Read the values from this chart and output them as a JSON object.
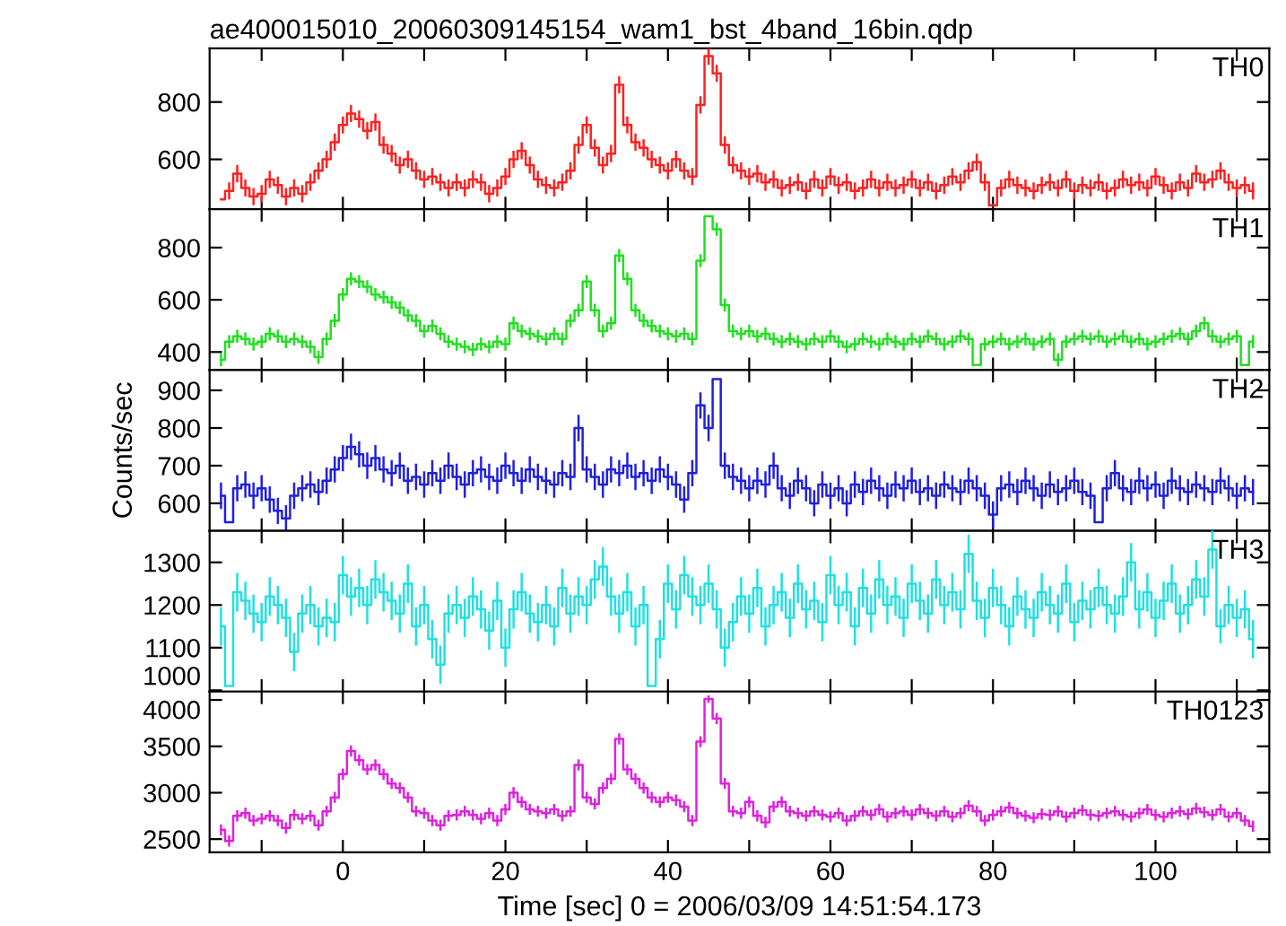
{
  "chart_data": [
    {
      "type": "step",
      "title": "ae400015010_20060309145154_wam1_bst_4band_16bin.qdp",
      "xlim": [
        -16.4,
        114
      ],
      "ylim": [
        426,
        987
      ],
      "yticks": [
        600,
        800
      ],
      "xticks": [
        {
          "value": -10,
          "label": null
        },
        {
          "value": 0,
          "label": null
        },
        {
          "value": 10,
          "label": null
        },
        {
          "value": 20,
          "label": null
        },
        {
          "value": 30,
          "label": null
        },
        {
          "value": 40,
          "label": null
        },
        {
          "value": 50,
          "label": null
        },
        {
          "value": 60,
          "label": null
        },
        {
          "value": 70,
          "label": null
        },
        {
          "value": 80,
          "label": null
        },
        {
          "value": 90,
          "label": null
        },
        {
          "value": 100,
          "label": null
        },
        {
          "value": 110,
          "label": null
        }
      ],
      "tick_labels": "y",
      "legend": false,
      "grid": false,
      "x": [
        -15,
        -14,
        -13,
        -12,
        -11,
        -10,
        -9,
        -8,
        -7,
        -6,
        -5,
        -4,
        -3,
        -2,
        -1,
        0,
        1,
        2,
        3,
        4,
        5,
        6,
        7,
        8,
        9,
        10,
        11,
        12,
        13,
        14,
        15,
        16,
        17,
        18,
        19,
        20,
        21,
        22,
        23,
        24,
        25,
        26,
        27,
        28,
        29,
        30,
        31,
        32,
        33,
        34,
        35,
        36,
        37,
        38,
        39,
        40,
        41,
        42,
        43,
        44,
        45,
        46,
        47,
        48,
        49,
        50,
        51,
        52,
        53,
        54,
        55,
        56,
        57,
        58,
        59,
        60,
        61,
        62,
        63,
        64,
        65,
        66,
        67,
        68,
        69,
        70,
        71,
        72,
        73,
        74,
        75,
        76,
        77,
        78,
        79,
        80,
        81,
        82,
        83,
        84,
        85,
        86,
        87,
        88,
        89,
        90,
        91,
        92,
        93,
        94,
        95,
        96,
        97,
        98,
        99,
        100,
        101,
        102,
        103,
        104,
        105,
        106,
        107,
        108,
        109,
        110,
        111,
        112
      ],
      "series": [
        {
          "name": "TH0",
          "color": "#ff2020",
          "values": [
            460,
            490,
            550,
            500,
            470,
            480,
            530,
            510,
            470,
            500,
            480,
            520,
            560,
            600,
            660,
            720,
            760,
            740,
            700,
            730,
            650,
            620,
            580,
            600,
            560,
            530,
            540,
            520,
            500,
            520,
            500,
            530,
            520,
            480,
            500,
            540,
            600,
            630,
            580,
            530,
            510,
            500,
            520,
            560,
            650,
            720,
            640,
            580,
            620,
            860,
            720,
            660,
            640,
            600,
            580,
            560,
            600,
            560,
            540,
            790,
            960,
            900,
            650,
            580,
            560,
            540,
            550,
            520,
            530,
            500,
            510,
            520,
            490,
            530,
            500,
            540,
            510,
            520,
            490,
            500,
            530,
            500,
            520,
            500,
            510,
            530,
            500,
            520,
            490,
            510,
            540,
            520,
            560,
            590,
            520,
            440,
            500,
            530,
            510,
            500,
            490,
            510,
            520,
            500,
            530,
            490,
            510,
            500,
            520,
            490,
            500,
            530,
            510,
            520,
            500,
            540,
            510,
            490,
            520,
            500,
            550,
            520,
            530,
            560,
            520,
            500,
            510,
            490
          ],
          "errors": [
            null,
            30,
            30,
            30,
            30,
            30,
            30,
            30,
            30,
            30,
            30,
            30,
            30,
            30,
            30,
            30,
            30,
            30,
            30,
            30,
            30,
            30,
            30,
            30,
            30,
            30,
            30,
            30,
            30,
            30,
            30,
            30,
            30,
            30,
            30,
            30,
            30,
            30,
            30,
            30,
            30,
            30,
            30,
            30,
            30,
            30,
            30,
            30,
            30,
            30,
            30,
            30,
            30,
            30,
            30,
            30,
            30,
            30,
            30,
            30,
            30,
            30,
            30,
            30,
            30,
            30,
            30,
            30,
            30,
            30,
            30,
            30,
            30,
            30,
            30,
            30,
            30,
            30,
            30,
            30,
            30,
            30,
            30,
            30,
            30,
            30,
            30,
            30,
            30,
            30,
            30,
            30,
            30,
            30,
            30,
            null,
            30,
            30,
            30,
            30,
            30,
            30,
            30,
            30,
            30,
            30,
            30,
            30,
            30,
            30,
            30,
            30,
            30,
            30,
            30,
            30,
            30,
            30,
            30,
            30,
            30,
            30,
            30,
            30,
            30,
            30,
            30,
            30
          ]
        }
      ]
    },
    {
      "type": "step",
      "xlim": [
        -16.4,
        114
      ],
      "ylim": [
        331,
        947
      ],
      "yticks": [
        400,
        600,
        800
      ],
      "xticks": [
        {
          "value": -10,
          "label": null
        },
        {
          "value": 0,
          "label": null
        },
        {
          "value": 10,
          "label": null
        },
        {
          "value": 20,
          "label": null
        },
        {
          "value": 30,
          "label": null
        },
        {
          "value": 40,
          "label": null
        },
        {
          "value": 50,
          "label": null
        },
        {
          "value": 60,
          "label": null
        },
        {
          "value": 70,
          "label": null
        },
        {
          "value": 80,
          "label": null
        },
        {
          "value": 90,
          "label": null
        },
        {
          "value": 100,
          "label": null
        },
        {
          "value": 110,
          "label": null
        }
      ],
      "tick_labels": "y",
      "legend": false,
      "grid": false,
      "x": [
        -15,
        -14,
        -13,
        -12,
        -11,
        -10,
        -9,
        -8,
        -7,
        -6,
        -5,
        -4,
        -3,
        -2,
        -1,
        0,
        1,
        2,
        3,
        4,
        5,
        6,
        7,
        8,
        9,
        10,
        11,
        12,
        13,
        14,
        15,
        16,
        17,
        18,
        19,
        20,
        21,
        22,
        23,
        24,
        25,
        26,
        27,
        28,
        29,
        30,
        31,
        32,
        33,
        34,
        35,
        36,
        37,
        38,
        39,
        40,
        41,
        42,
        43,
        44,
        45,
        46,
        47,
        48,
        49,
        50,
        51,
        52,
        53,
        54,
        55,
        56,
        57,
        58,
        59,
        60,
        61,
        62,
        63,
        64,
        65,
        66,
        67,
        68,
        69,
        70,
        71,
        72,
        73,
        74,
        75,
        76,
        77,
        78,
        79,
        80,
        81,
        82,
        83,
        84,
        85,
        86,
        87,
        88,
        89,
        90,
        91,
        92,
        93,
        94,
        95,
        96,
        97,
        98,
        99,
        100,
        101,
        102,
        103,
        104,
        105,
        106,
        107,
        108,
        109,
        110,
        111,
        112
      ],
      "series": [
        {
          "name": "TH1",
          "color": "#20e020",
          "values": [
            370,
            440,
            460,
            450,
            430,
            440,
            470,
            460,
            440,
            450,
            440,
            420,
            380,
            450,
            520,
            620,
            680,
            670,
            650,
            620,
            610,
            590,
            570,
            540,
            520,
            480,
            500,
            470,
            440,
            430,
            420,
            410,
            430,
            420,
            440,
            430,
            510,
            480,
            470,
            460,
            450,
            470,
            450,
            520,
            560,
            670,
            560,
            480,
            510,
            770,
            680,
            560,
            520,
            500,
            480,
            470,
            460,
            470,
            450,
            750,
            920,
            870,
            580,
            480,
            470,
            480,
            460,
            470,
            450,
            440,
            450,
            440,
            430,
            450,
            440,
            460,
            440,
            420,
            430,
            450,
            440,
            430,
            450,
            440,
            430,
            450,
            440,
            460,
            450,
            430,
            440,
            460,
            450,
            350,
            430,
            440,
            450,
            430,
            440,
            450,
            430,
            440,
            450,
            370,
            440,
            450,
            460,
            450,
            460,
            440,
            450,
            460,
            440,
            450,
            430,
            440,
            450,
            460,
            470,
            450,
            480,
            510,
            460,
            440,
            450,
            460,
            350,
            440
          ],
          "errors": [
            25,
            25,
            25,
            25,
            25,
            25,
            25,
            25,
            25,
            25,
            25,
            25,
            25,
            25,
            25,
            25,
            25,
            25,
            25,
            25,
            25,
            25,
            25,
            25,
            25,
            25,
            25,
            25,
            25,
            25,
            25,
            25,
            25,
            25,
            25,
            25,
            25,
            25,
            25,
            25,
            25,
            25,
            25,
            25,
            25,
            25,
            25,
            25,
            25,
            25,
            25,
            25,
            25,
            25,
            25,
            25,
            25,
            25,
            25,
            25,
            null,
            25,
            25,
            25,
            25,
            25,
            25,
            25,
            25,
            25,
            25,
            25,
            25,
            25,
            25,
            25,
            25,
            25,
            25,
            25,
            25,
            25,
            25,
            25,
            25,
            25,
            25,
            25,
            25,
            25,
            25,
            25,
            25,
            null,
            25,
            25,
            25,
            25,
            25,
            25,
            25,
            25,
            25,
            25,
            25,
            25,
            25,
            25,
            25,
            25,
            25,
            25,
            25,
            25,
            25,
            25,
            25,
            25,
            25,
            25,
            25,
            25,
            25,
            25,
            25,
            25,
            null,
            25
          ]
        }
      ]
    },
    {
      "type": "step",
      "ylabel": "Counts/sec",
      "xlim": [
        -16.4,
        114
      ],
      "ylim": [
        527,
        954
      ],
      "yticks": [
        600,
        700,
        800,
        900
      ],
      "xticks": [
        {
          "value": -10,
          "label": null
        },
        {
          "value": 0,
          "label": null
        },
        {
          "value": 10,
          "label": null
        },
        {
          "value": 20,
          "label": null
        },
        {
          "value": 30,
          "label": null
        },
        {
          "value": 40,
          "label": null
        },
        {
          "value": 50,
          "label": null
        },
        {
          "value": 60,
          "label": null
        },
        {
          "value": 70,
          "label": null
        },
        {
          "value": 80,
          "label": null
        },
        {
          "value": 90,
          "label": null
        },
        {
          "value": 100,
          "label": null
        },
        {
          "value": 110,
          "label": null
        }
      ],
      "tick_labels": "y",
      "legend": false,
      "grid": false,
      "x": [
        -15,
        -14,
        -13,
        -12,
        -11,
        -10,
        -9,
        -8,
        -7,
        -6,
        -5,
        -4,
        -3,
        -2,
        -1,
        0,
        1,
        2,
        3,
        4,
        5,
        6,
        7,
        8,
        9,
        10,
        11,
        12,
        13,
        14,
        15,
        16,
        17,
        18,
        19,
        20,
        21,
        22,
        23,
        24,
        25,
        26,
        27,
        28,
        29,
        30,
        31,
        32,
        33,
        34,
        35,
        36,
        37,
        38,
        39,
        40,
        41,
        42,
        43,
        44,
        45,
        46,
        47,
        48,
        49,
        50,
        51,
        52,
        53,
        54,
        55,
        56,
        57,
        58,
        59,
        60,
        61,
        62,
        63,
        64,
        65,
        66,
        67,
        68,
        69,
        70,
        71,
        72,
        73,
        74,
        75,
        76,
        77,
        78,
        79,
        80,
        81,
        82,
        83,
        84,
        85,
        86,
        87,
        88,
        89,
        90,
        91,
        92,
        93,
        94,
        95,
        96,
        97,
        98,
        99,
        100,
        101,
        102,
        103,
        104,
        105,
        106,
        107,
        108,
        109,
        110,
        111,
        112
      ],
      "series": [
        {
          "name": "TH2",
          "color": "#2020e0",
          "values": [
            620,
            550,
            640,
            650,
            620,
            640,
            610,
            580,
            560,
            620,
            640,
            650,
            630,
            660,
            690,
            720,
            750,
            730,
            700,
            720,
            690,
            680,
            700,
            660,
            670,
            650,
            680,
            660,
            700,
            670,
            650,
            680,
            690,
            670,
            660,
            700,
            680,
            660,
            690,
            670,
            660,
            650,
            680,
            670,
            800,
            690,
            670,
            650,
            690,
            680,
            700,
            670,
            680,
            660,
            690,
            670,
            650,
            610,
            680,
            860,
            800,
            930,
            700,
            670,
            660,
            640,
            660,
            650,
            700,
            640,
            620,
            660,
            640,
            600,
            650,
            620,
            640,
            600,
            650,
            630,
            660,
            640,
            620,
            650,
            640,
            660,
            630,
            640,
            620,
            650,
            640,
            630,
            660,
            640,
            620,
            570,
            640,
            650,
            630,
            660,
            640,
            620,
            650,
            630,
            640,
            660,
            630,
            620,
            550,
            640,
            680,
            640,
            630,
            660,
            640,
            650,
            620,
            660,
            640,
            630,
            650,
            640,
            630,
            660,
            640,
            620,
            640,
            630
          ],
          "errors": [
            35,
            null,
            35,
            35,
            35,
            35,
            35,
            35,
            35,
            35,
            35,
            35,
            35,
            35,
            35,
            35,
            35,
            35,
            35,
            35,
            35,
            35,
            35,
            35,
            35,
            35,
            35,
            35,
            35,
            35,
            35,
            35,
            35,
            35,
            35,
            35,
            35,
            35,
            35,
            35,
            35,
            35,
            35,
            35,
            35,
            35,
            35,
            35,
            35,
            35,
            35,
            35,
            35,
            35,
            35,
            35,
            35,
            35,
            35,
            35,
            35,
            null,
            35,
            35,
            35,
            35,
            35,
            35,
            35,
            35,
            35,
            35,
            35,
            35,
            35,
            35,
            35,
            35,
            35,
            35,
            35,
            35,
            35,
            35,
            35,
            35,
            35,
            35,
            35,
            35,
            35,
            35,
            35,
            35,
            35,
            35,
            35,
            35,
            35,
            35,
            35,
            35,
            35,
            35,
            35,
            35,
            35,
            35,
            null,
            35,
            35,
            35,
            35,
            35,
            35,
            35,
            35,
            35,
            35,
            35,
            35,
            35,
            35,
            35,
            35,
            35,
            35,
            35
          ]
        }
      ]
    },
    {
      "type": "step",
      "xlim": [
        -16.4,
        114
      ],
      "ylim": [
        997,
        1374
      ],
      "yticks": [
        1000,
        1100,
        1200,
        1300
      ],
      "xticks": [
        {
          "value": -10,
          "label": null
        },
        {
          "value": 0,
          "label": null
        },
        {
          "value": 10,
          "label": null
        },
        {
          "value": 20,
          "label": null
        },
        {
          "value": 30,
          "label": null
        },
        {
          "value": 40,
          "label": null
        },
        {
          "value": 50,
          "label": null
        },
        {
          "value": 60,
          "label": null
        },
        {
          "value": 70,
          "label": null
        },
        {
          "value": 80,
          "label": null
        },
        {
          "value": 90,
          "label": null
        },
        {
          "value": 100,
          "label": null
        },
        {
          "value": 110,
          "label": null
        }
      ],
      "tick_labels": "y",
      "legend": false,
      "grid": false,
      "x": [
        -15,
        -14,
        -13,
        -12,
        -11,
        -10,
        -9,
        -8,
        -7,
        -6,
        -5,
        -4,
        -3,
        -2,
        -1,
        0,
        1,
        2,
        3,
        4,
        5,
        6,
        7,
        8,
        9,
        10,
        11,
        12,
        13,
        14,
        15,
        16,
        17,
        18,
        19,
        20,
        21,
        22,
        23,
        24,
        25,
        26,
        27,
        28,
        29,
        30,
        31,
        32,
        33,
        34,
        35,
        36,
        37,
        38,
        39,
        40,
        41,
        42,
        43,
        44,
        45,
        46,
        47,
        48,
        49,
        50,
        51,
        52,
        53,
        54,
        55,
        56,
        57,
        58,
        59,
        60,
        61,
        62,
        63,
        64,
        65,
        66,
        67,
        68,
        69,
        70,
        71,
        72,
        73,
        74,
        75,
        76,
        77,
        78,
        79,
        80,
        81,
        82,
        83,
        84,
        85,
        86,
        87,
        88,
        89,
        90,
        91,
        92,
        93,
        94,
        95,
        96,
        97,
        98,
        99,
        100,
        101,
        102,
        103,
        104,
        105,
        106,
        107,
        108,
        109,
        110,
        111,
        112
      ],
      "series": [
        {
          "name": "TH3",
          "color": "#20e0e0",
          "values": [
            1150,
            1010,
            1230,
            1210,
            1180,
            1160,
            1220,
            1200,
            1170,
            1090,
            1180,
            1200,
            1150,
            1170,
            1160,
            1270,
            1220,
            1240,
            1200,
            1260,
            1230,
            1210,
            1180,
            1250,
            1150,
            1200,
            1120,
            1060,
            1180,
            1200,
            1170,
            1220,
            1190,
            1140,
            1210,
            1100,
            1190,
            1230,
            1180,
            1160,
            1200,
            1150,
            1240,
            1180,
            1220,
            1200,
            1260,
            1290,
            1220,
            1180,
            1230,
            1150,
            1200,
            1010,
            1120,
            1250,
            1190,
            1270,
            1220,
            1200,
            1250,
            1190,
            1100,
            1160,
            1220,
            1180,
            1240,
            1150,
            1200,
            1230,
            1170,
            1250,
            1190,
            1210,
            1160,
            1270,
            1200,
            1230,
            1150,
            1240,
            1180,
            1260,
            1200,
            1220,
            1170,
            1250,
            1210,
            1180,
            1260,
            1200,
            1230,
            1190,
            1320,
            1210,
            1170,
            1240,
            1200,
            1150,
            1220,
            1190,
            1170,
            1230,
            1200,
            1180,
            1250,
            1160,
            1210,
            1190,
            1240,
            1200,
            1180,
            1220,
            1300,
            1190,
            1230,
            1170,
            1210,
            1250,
            1180,
            1200,
            1260,
            1220,
            1330,
            1150,
            1200,
            1170,
            1190,
            1120
          ],
          "errors": [
            45,
            null,
            45,
            45,
            45,
            45,
            45,
            45,
            45,
            45,
            45,
            45,
            45,
            45,
            45,
            45,
            45,
            45,
            45,
            45,
            45,
            45,
            45,
            45,
            45,
            45,
            45,
            45,
            45,
            45,
            45,
            45,
            45,
            45,
            45,
            45,
            45,
            45,
            45,
            45,
            45,
            45,
            45,
            45,
            45,
            45,
            45,
            45,
            45,
            45,
            45,
            45,
            45,
            null,
            45,
            45,
            45,
            45,
            45,
            45,
            45,
            45,
            45,
            45,
            45,
            45,
            45,
            45,
            45,
            45,
            45,
            45,
            45,
            45,
            45,
            45,
            45,
            45,
            45,
            45,
            45,
            45,
            45,
            45,
            45,
            45,
            45,
            45,
            45,
            45,
            45,
            45,
            45,
            45,
            45,
            45,
            45,
            45,
            45,
            45,
            45,
            45,
            45,
            45,
            45,
            45,
            45,
            45,
            45,
            45,
            45,
            45,
            45,
            45,
            45,
            45,
            45,
            45,
            45,
            45,
            45,
            45,
            45,
            40,
            45,
            45,
            45,
            45
          ]
        }
      ]
    },
    {
      "type": "step",
      "xlabel": "Time [sec] 0 = 2006/03/09 14:51:54.173",
      "xlim": [
        -16.4,
        114
      ],
      "ylim": [
        2357,
        4090
      ],
      "yticks": [
        2500,
        3000,
        3500,
        4000
      ],
      "xticks": [
        {
          "value": -10,
          "label": null
        },
        {
          "value": 0,
          "label": "0"
        },
        {
          "value": 10,
          "label": null
        },
        {
          "value": 20,
          "label": "20"
        },
        {
          "value": 30,
          "label": null
        },
        {
          "value": 40,
          "label": "40"
        },
        {
          "value": 50,
          "label": null
        },
        {
          "value": 60,
          "label": "60"
        },
        {
          "value": 70,
          "label": null
        },
        {
          "value": 80,
          "label": "80"
        },
        {
          "value": 90,
          "label": null
        },
        {
          "value": 100,
          "label": "100"
        },
        {
          "value": 110,
          "label": null
        }
      ],
      "legend": false,
      "grid": false,
      "x": [
        -15,
        -14,
        -13,
        -12,
        -11,
        -10,
        -9,
        -8,
        -7,
        -6,
        -5,
        -4,
        -3,
        -2,
        -1,
        0,
        1,
        2,
        3,
        4,
        5,
        6,
        7,
        8,
        9,
        10,
        11,
        12,
        13,
        14,
        15,
        16,
        17,
        18,
        19,
        20,
        21,
        22,
        23,
        24,
        25,
        26,
        27,
        28,
        29,
        30,
        31,
        32,
        33,
        34,
        35,
        36,
        37,
        38,
        39,
        40,
        41,
        42,
        43,
        44,
        45,
        46,
        47,
        48,
        49,
        50,
        51,
        52,
        53,
        54,
        55,
        56,
        57,
        58,
        59,
        60,
        61,
        62,
        63,
        64,
        65,
        66,
        67,
        68,
        69,
        70,
        71,
        72,
        73,
        74,
        75,
        76,
        77,
        78,
        79,
        80,
        81,
        82,
        83,
        84,
        85,
        86,
        87,
        88,
        89,
        90,
        91,
        92,
        93,
        94,
        95,
        96,
        97,
        98,
        99,
        100,
        101,
        102,
        103,
        104,
        105,
        106,
        107,
        108,
        109,
        110,
        111,
        112
      ],
      "series": [
        {
          "name": "TH0123",
          "color": "#e020e0",
          "values": [
            2600,
            2480,
            2750,
            2780,
            2700,
            2720,
            2750,
            2700,
            2620,
            2760,
            2720,
            2750,
            2650,
            2800,
            2950,
            3200,
            3450,
            3350,
            3250,
            3300,
            3200,
            3100,
            3050,
            2950,
            2800,
            2780,
            2700,
            2650,
            2750,
            2760,
            2800,
            2760,
            2720,
            2780,
            2700,
            2820,
            3000,
            2900,
            2820,
            2800,
            2780,
            2820,
            2750,
            2800,
            3300,
            2950,
            2880,
            3050,
            3150,
            3580,
            3250,
            3150,
            3050,
            2950,
            2900,
            2950,
            2920,
            2850,
            2700,
            3550,
            4010,
            3800,
            3100,
            2800,
            2780,
            2900,
            2750,
            2680,
            2850,
            2900,
            2800,
            2780,
            2750,
            2800,
            2760,
            2740,
            2780,
            2700,
            2750,
            2800,
            2760,
            2820,
            2740,
            2780,
            2800,
            2760,
            2820,
            2780,
            2750,
            2800,
            2740,
            2780,
            2860,
            2800,
            2700,
            2760,
            2800,
            2840,
            2780,
            2750,
            2730,
            2770,
            2760,
            2800,
            2740,
            2780,
            2810,
            2760,
            2750,
            2780,
            2800,
            2760,
            2740,
            2780,
            2820,
            2760,
            2740,
            2780,
            2800,
            2770,
            2830,
            2790,
            2760,
            2820,
            2740,
            2780,
            2700,
            2640
          ],
          "errors": [
            60,
            60,
            60,
            60,
            60,
            60,
            60,
            60,
            60,
            60,
            60,
            60,
            60,
            60,
            60,
            60,
            60,
            60,
            60,
            60,
            60,
            60,
            60,
            60,
            60,
            60,
            60,
            60,
            60,
            60,
            60,
            60,
            60,
            60,
            60,
            60,
            60,
            60,
            60,
            60,
            60,
            60,
            60,
            60,
            60,
            60,
            60,
            60,
            60,
            60,
            60,
            60,
            60,
            60,
            60,
            60,
            60,
            60,
            60,
            60,
            40,
            60,
            60,
            60,
            60,
            60,
            60,
            60,
            60,
            60,
            60,
            60,
            60,
            60,
            60,
            60,
            60,
            60,
            60,
            60,
            60,
            60,
            60,
            60,
            60,
            60,
            60,
            60,
            60,
            60,
            60,
            60,
            60,
            60,
            60,
            60,
            60,
            60,
            60,
            60,
            60,
            60,
            60,
            60,
            60,
            60,
            60,
            60,
            60,
            60,
            60,
            60,
            60,
            60,
            60,
            60,
            60,
            60,
            60,
            60,
            60,
            60,
            60,
            60,
            60,
            60,
            60,
            60
          ]
        }
      ]
    }
  ]
}
